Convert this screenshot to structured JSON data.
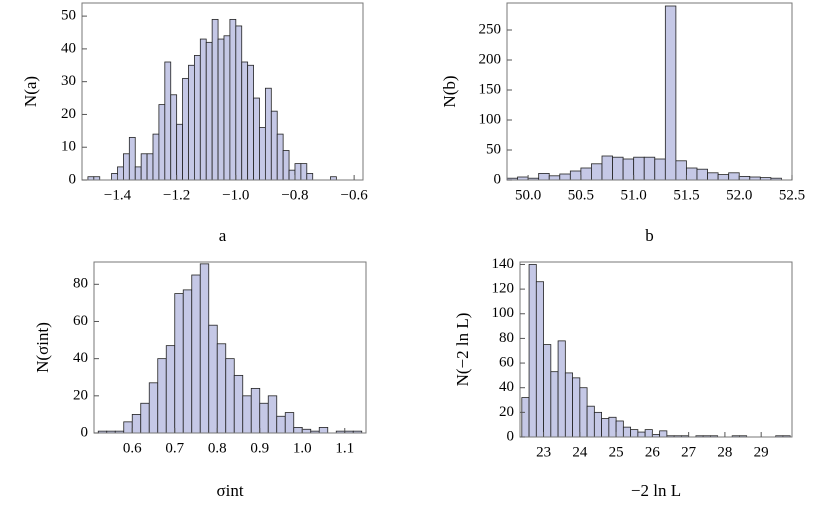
{
  "chart_data": [
    {
      "type": "histogram",
      "xlabel": "a",
      "ylabel": "N(a)",
      "color": "#c5c8e6",
      "bins": [
        -1.5,
        -1.48,
        -1.46,
        -1.44,
        -1.42,
        -1.4,
        -1.38,
        -1.36,
        -1.34,
        -1.32,
        -1.3,
        -1.28,
        -1.26,
        -1.24,
        -1.22,
        -1.2,
        -1.18,
        -1.16,
        -1.14,
        -1.12,
        -1.1,
        -1.08,
        -1.06,
        -1.04,
        -1.02,
        -1.0,
        -0.98,
        -0.96,
        -0.94,
        -0.92,
        -0.9,
        -0.88,
        -0.86,
        -0.84,
        -0.82,
        -0.8,
        -0.78,
        -0.76,
        -0.74,
        -0.72,
        -0.7,
        -0.68,
        -0.66,
        -0.64,
        -0.62,
        -0.6
      ],
      "values": [
        1,
        1,
        0,
        0,
        2,
        4,
        8,
        13,
        4,
        8,
        8,
        14,
        23,
        36,
        26,
        17,
        31,
        35,
        38,
        43,
        42,
        49,
        43,
        44,
        49,
        47,
        36,
        35,
        25,
        16,
        28,
        21,
        14,
        9,
        3,
        5,
        5,
        2,
        0,
        0,
        0,
        1,
        0,
        0,
        0
      ],
      "xlim": [
        -1.52,
        -0.57
      ],
      "ylim": [
        0,
        54
      ],
      "xticks": [
        {
          "value": -1.4,
          "label": "−1.4"
        },
        {
          "value": -1.2,
          "label": "−1.2"
        },
        {
          "value": -1.0,
          "label": "−1.0"
        },
        {
          "value": -0.8,
          "label": "−0.8"
        },
        {
          "value": -0.6,
          "label": "−0.6"
        }
      ],
      "yticks": [
        0,
        10,
        20,
        30,
        40,
        50
      ]
    },
    {
      "type": "histogram",
      "xlabel": "b",
      "ylabel": "N(b)",
      "color": "#c5c8e6",
      "bins": [
        49.8,
        49.9,
        50.0,
        50.1,
        50.2,
        50.3,
        50.4,
        50.5,
        50.6,
        50.7,
        50.8,
        50.9,
        51.0,
        51.1,
        51.2,
        51.3,
        51.4,
        51.5,
        51.6,
        51.7,
        51.8,
        51.9,
        52.0,
        52.1,
        52.2,
        52.3,
        52.4,
        52.5
      ],
      "values": [
        3,
        5,
        3,
        11,
        7,
        10,
        15,
        20,
        27,
        40,
        38,
        35,
        38,
        38,
        35,
        290,
        32,
        20,
        18,
        12,
        9,
        12,
        6,
        5,
        4,
        3,
        0
      ],
      "xlim": [
        49.8,
        52.5
      ],
      "ylim": [
        0,
        295
      ],
      "xticks": [
        {
          "value": 50.0,
          "label": "50.0"
        },
        50.5,
        {
          "value": 51.0,
          "label": "51.0"
        },
        51.5,
        {
          "value": 52.0,
          "label": "52.0"
        },
        52.5
      ],
      "yticks": [
        0,
        50,
        100,
        150,
        200,
        250
      ]
    },
    {
      "type": "histogram",
      "xlabel": "σint",
      "ylabel": "N(σint)",
      "color": "#c5c8e6",
      "bins": [
        0.52,
        0.54,
        0.56,
        0.58,
        0.6,
        0.62,
        0.64,
        0.66,
        0.68,
        0.7,
        0.72,
        0.74,
        0.76,
        0.78,
        0.8,
        0.82,
        0.84,
        0.86,
        0.88,
        0.9,
        0.92,
        0.94,
        0.96,
        0.98,
        1.0,
        1.02,
        1.04,
        1.06,
        1.08,
        1.1,
        1.12,
        1.14
      ],
      "values": [
        1,
        1,
        1,
        6,
        10,
        16,
        27,
        40,
        47,
        75,
        77,
        85,
        91,
        58,
        48,
        40,
        31,
        20,
        24,
        16,
        20,
        9,
        11,
        3,
        2,
        1,
        3,
        0,
        1,
        1,
        1
      ],
      "xlim": [
        0.51,
        1.15
      ],
      "ylim": [
        0,
        92
      ],
      "xticks": [
        0.6,
        0.7,
        0.8,
        0.9,
        {
          "value": 1.0,
          "label": "1.0"
        },
        1.1
      ],
      "yticks": [
        0,
        20,
        40,
        60,
        80
      ]
    },
    {
      "type": "histogram",
      "xlabel": "−2 ln L",
      "ylabel": "N(−2 ln L)",
      "color": "#c5c8e6",
      "bins": [
        22.4,
        22.6,
        22.8,
        23.0,
        23.2,
        23.4,
        23.6,
        23.8,
        24.0,
        24.2,
        24.4,
        24.6,
        24.8,
        25.0,
        25.2,
        25.4,
        25.6,
        25.8,
        26.0,
        26.2,
        26.4,
        26.6,
        26.8,
        27.0,
        27.2,
        27.4,
        27.6,
        27.8,
        28.0,
        28.2,
        28.4,
        28.6,
        28.8,
        29.0,
        29.2,
        29.4,
        29.6,
        29.8
      ],
      "values": [
        32,
        140,
        126,
        75,
        53,
        78,
        52,
        48,
        40,
        25,
        20,
        15,
        16,
        13,
        8,
        6,
        4,
        6,
        2,
        5,
        1,
        1,
        1,
        0,
        1,
        1,
        1,
        0,
        0,
        1,
        1,
        0,
        0,
        0,
        0,
        1,
        1
      ],
      "xlim": [
        22.35,
        29.85
      ],
      "ylim": [
        0,
        142
      ],
      "xticks": [
        23,
        24,
        25,
        26,
        27,
        28,
        29
      ],
      "yticks": [
        0,
        20,
        40,
        60,
        80,
        100,
        120,
        140
      ]
    }
  ]
}
